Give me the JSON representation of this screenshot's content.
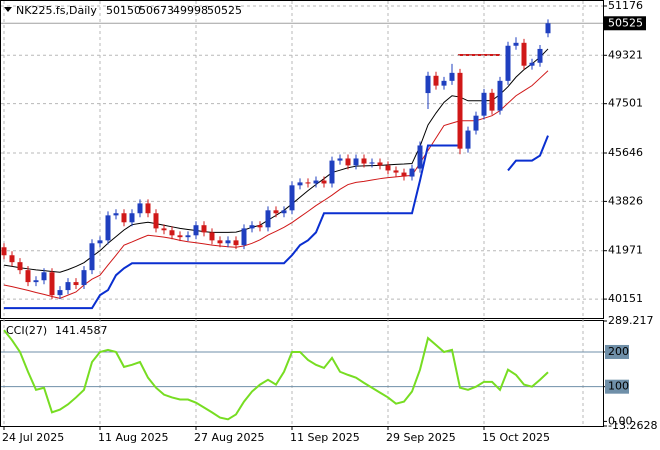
{
  "chart_data": [
    {
      "type": "candlestick",
      "title": "NK225.fs,Daily",
      "categories": [
        "24 Jul 2025",
        null,
        null,
        null,
        null,
        null,
        null,
        null,
        null,
        null,
        null,
        null,
        "11 Aug 2025",
        null,
        null,
        null,
        null,
        null,
        null,
        null,
        null,
        null,
        null,
        null,
        "27 Aug 2025",
        null,
        null,
        null,
        null,
        null,
        null,
        null,
        null,
        null,
        null,
        null,
        "11 Sep 2025",
        null,
        null,
        null,
        null,
        null,
        null,
        null,
        null,
        null,
        null,
        null,
        "29 Sep 2025",
        null,
        null,
        null,
        null,
        null,
        null,
        null,
        null,
        null,
        null,
        null,
        "15 Oct 2025",
        null,
        null,
        null,
        null,
        null,
        null,
        null,
        null
      ],
      "open": [
        42100,
        41800,
        41540,
        41240,
        40790,
        40860,
        41160,
        40300,
        40490,
        40790,
        40680,
        41240,
        42250,
        42360,
        43300,
        43380,
        43040,
        43380,
        43750,
        43380,
        42810,
        42740,
        42550,
        42480,
        42550,
        42930,
        42660,
        42360,
        42250,
        42360,
        42180,
        42810,
        42930,
        42850,
        43490,
        43380,
        43490,
        44430,
        44540,
        44500,
        44610,
        44500,
        45360,
        45440,
        45180,
        45440,
        45250,
        45290,
        45180,
        44990,
        44910,
        44760,
        45060,
        47900,
        48550,
        48180,
        48360,
        48660,
        45810,
        46490,
        47050,
        47910,
        47240,
        48360,
        49680,
        49790,
        48930,
        49040,
        50150
      ],
      "high": [
        42250,
        41950,
        41690,
        41390,
        41010,
        41310,
        41310,
        40640,
        40940,
        40940,
        41390,
        42400,
        42510,
        43450,
        43530,
        43530,
        43530,
        43900,
        43900,
        43530,
        42960,
        42890,
        42700,
        42700,
        43080,
        43080,
        42810,
        42510,
        42510,
        42510,
        42960,
        43080,
        43080,
        43640,
        43640,
        43640,
        44580,
        44690,
        44690,
        44760,
        44760,
        45510,
        45590,
        45590,
        45590,
        45590,
        45440,
        45440,
        45330,
        45140,
        45060,
        45210,
        46080,
        48700,
        48700,
        48510,
        49000,
        48810,
        46640,
        47200,
        48060,
        48060,
        48510,
        49830,
        50000,
        49940,
        49190,
        49710,
        50673
      ],
      "low": [
        41650,
        41390,
        41090,
        40640,
        40640,
        40710,
        40150,
        40150,
        40340,
        40530,
        40530,
        41090,
        42100,
        42210,
        43150,
        42890,
        42890,
        43230,
        43230,
        42660,
        42590,
        42400,
        42330,
        42330,
        42400,
        42510,
        42210,
        42100,
        42100,
        42030,
        42030,
        42660,
        42700,
        42700,
        43230,
        43230,
        43340,
        44280,
        44350,
        44350,
        44350,
        44350,
        45210,
        45030,
        45030,
        45100,
        45100,
        45030,
        44840,
        44760,
        44610,
        44610,
        44910,
        47300,
        48030,
        48030,
        48210,
        45600,
        45660,
        46340,
        46900,
        47090,
        47090,
        48210,
        49530,
        48780,
        48780,
        48890,
        49998
      ],
      "close": [
        41800,
        41540,
        41240,
        40790,
        40860,
        41160,
        40300,
        40490,
        40790,
        40680,
        41240,
        42250,
        42360,
        43300,
        43380,
        43040,
        43380,
        43750,
        43380,
        42810,
        42740,
        42550,
        42480,
        42550,
        42930,
        42660,
        42360,
        42250,
        42360,
        42180,
        42810,
        42930,
        42850,
        43490,
        43380,
        43490,
        44430,
        44540,
        44500,
        44610,
        44500,
        45360,
        45440,
        45180,
        45440,
        45250,
        45290,
        45180,
        44990,
        44910,
        44760,
        45060,
        45930,
        48550,
        48180,
        48360,
        48660,
        45810,
        46490,
        47050,
        47910,
        47240,
        48360,
        49680,
        49790,
        48930,
        49040,
        49560,
        50525
      ],
      "up_color": "#1f3fbf",
      "down_color": "#d01818",
      "series": [
        {
          "color": "#000000",
          "values": [
            41430,
            41380,
            41330,
            41290,
            41250,
            41220,
            41190,
            41160,
            41260,
            41380,
            41520,
            41750,
            41970,
            42250,
            42500,
            42750,
            42950,
            43000,
            43040,
            42990,
            42930,
            42870,
            42810,
            42770,
            42730,
            42690,
            42660,
            42660,
            42660,
            42670,
            42750,
            42850,
            42930,
            43120,
            43300,
            43490,
            43730,
            43980,
            44230,
            44460,
            44680,
            44910,
            45000,
            45090,
            45150,
            45160,
            45170,
            45180,
            45200,
            45220,
            45230,
            45250,
            45900,
            46700,
            47150,
            47550,
            47800,
            47750,
            47610,
            47610,
            47610,
            47620,
            47850,
            48140,
            48500,
            48780,
            49000,
            49250,
            49560
          ]
        },
        {
          "color": "#d01818",
          "values": [
            40680,
            40620,
            40550,
            40480,
            40400,
            40330,
            40250,
            40180,
            40300,
            40420,
            40680,
            40900,
            41050,
            41430,
            41800,
            42180,
            42300,
            42430,
            42550,
            42520,
            42480,
            42430,
            42360,
            42310,
            42270,
            42230,
            42180,
            42150,
            42120,
            42100,
            42150,
            42250,
            42380,
            42560,
            42700,
            42850,
            43030,
            43240,
            43450,
            43670,
            43860,
            44060,
            44280,
            44460,
            44540,
            44580,
            44630,
            44680,
            44720,
            44750,
            44780,
            44800,
            45270,
            45740,
            46210,
            46680,
            46770,
            46860,
            46860,
            46860,
            46950,
            47050,
            47240,
            47520,
            47800,
            47990,
            48180,
            48460,
            48740
          ]
        },
        {
          "color": "#0a2fd0",
          "width": 2,
          "values": [
            39810,
            39810,
            39810,
            39810,
            39810,
            39810,
            39810,
            39810,
            39810,
            39810,
            39810,
            39810,
            40300,
            40490,
            41050,
            41310,
            41500,
            41500,
            41500,
            41500,
            41500,
            41500,
            41500,
            41500,
            41500,
            41500,
            41500,
            41500,
            41500,
            41500,
            41500,
            41500,
            41500,
            41500,
            41500,
            41500,
            41800,
            42180,
            42360,
            42660,
            43380,
            43380,
            43380,
            43380,
            43380,
            43380,
            43380,
            43380,
            43380,
            43380,
            43380,
            43380,
            44610,
            45930,
            45930,
            45930,
            45930,
            45930,
            null,
            null,
            null,
            null,
            null,
            44990,
            45360,
            45360,
            45360,
            45550,
            46300
          ]
        }
      ],
      "ylim": [
        39440,
        51363
      ],
      "yticks": [
        51176,
        49321,
        47501,
        45646,
        43826,
        41971,
        40151
      ],
      "grid": true
    },
    {
      "type": "line",
      "title": "CCI(27)",
      "color": "#77dd22",
      "values": [
        263,
        234,
        200,
        143,
        91,
        97,
        26,
        34,
        49,
        69,
        91,
        171,
        200,
        206,
        200,
        157,
        163,
        171,
        126,
        97,
        77,
        69,
        63,
        63,
        54,
        40,
        26,
        11,
        6,
        20,
        57,
        86,
        106,
        120,
        106,
        143,
        200,
        200,
        177,
        163,
        154,
        183,
        143,
        134,
        126,
        111,
        97,
        83,
        69,
        51,
        57,
        86,
        149,
        240,
        220,
        200,
        206,
        97,
        91,
        100,
        114,
        114,
        91,
        149,
        134,
        106,
        100,
        120,
        141.4587
      ],
      "ylim": [
        -13.2628,
        289.217
      ],
      "yticks": [
        289.217,
        200,
        100,
        {
          "value": 0,
          "label": "0.00"
        },
        -13.2628
      ],
      "levels": [
        200,
        100
      ]
    }
  ]
}
